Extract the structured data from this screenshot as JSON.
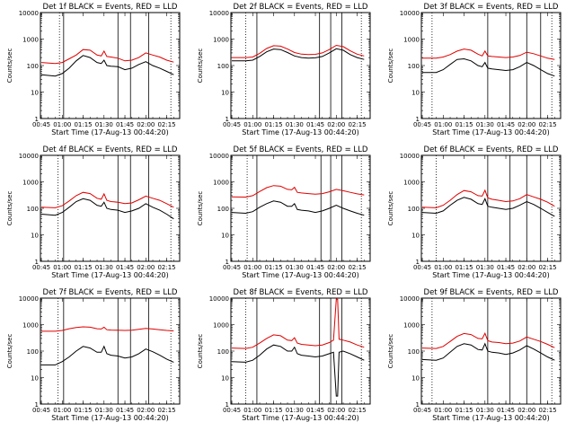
{
  "figure": {
    "xlabel": "Start Time (17-Aug-13 00:44:20)",
    "ylabel": "Counts/sec",
    "xticks": [
      "00:45",
      "01:00",
      "01:15",
      "01:30",
      "01:45",
      "02:00",
      "02:15"
    ],
    "yticks": [
      "1",
      "10",
      "100",
      "1000",
      "10000"
    ],
    "colors": {
      "events": "#000000",
      "lld": "#e00000",
      "markers": "#000000"
    }
  },
  "chart_data": [
    {
      "type": "line",
      "title": "Det 1f BLACK = Events, RED = LLD",
      "xlabel": "Start Time (17-Aug-13 00:44:20)",
      "ylabel": "Counts/sec",
      "y_scale": "log",
      "ylim": [
        1,
        10000
      ],
      "xlim": [
        "00:44:20",
        "02:24:20"
      ],
      "x_time_points": [
        "00:45",
        "00:55",
        "01:00",
        "01:05",
        "01:10",
        "01:15",
        "01:20",
        "01:25",
        "01:28",
        "01:30",
        "01:32",
        "01:35",
        "01:40",
        "01:45",
        "01:50",
        "01:55",
        "02:00",
        "02:05",
        "02:10",
        "02:15",
        "02:20"
      ],
      "series": [
        {
          "name": "Events",
          "color": "#000000",
          "values": [
            45,
            40,
            50,
            80,
            150,
            240,
            200,
            130,
            120,
            160,
            100,
            95,
            90,
            70,
            80,
            110,
            140,
            100,
            80,
            60,
            45
          ]
        },
        {
          "name": "LLD",
          "color": "#e00000",
          "values": [
            130,
            120,
            130,
            180,
            250,
            400,
            380,
            250,
            230,
            350,
            220,
            210,
            190,
            150,
            160,
            200,
            300,
            250,
            210,
            160,
            135
          ]
        }
      ],
      "vlines": {
        "dotted": [
          "00:58",
          "02:18"
        ],
        "solid": [
          "01:01",
          "01:40",
          "01:49",
          "02:02"
        ]
      }
    },
    {
      "type": "line",
      "title": "Det 2f BLACK = Events, RED = LLD",
      "xlabel": "Start Time (17-Aug-13 00:44:20)",
      "ylabel": "Counts/sec",
      "y_scale": "log",
      "ylim": [
        1,
        10000
      ],
      "xlim": [
        "00:44:20",
        "02:24:20"
      ],
      "x_time_points": [
        "00:45",
        "00:55",
        "01:00",
        "01:05",
        "01:10",
        "01:15",
        "01:20",
        "01:25",
        "01:30",
        "01:35",
        "01:40",
        "01:45",
        "01:50",
        "01:55",
        "02:00",
        "02:05",
        "02:10",
        "02:15",
        "02:20"
      ],
      "series": [
        {
          "name": "Events",
          "color": "#000000",
          "values": [
            150,
            150,
            160,
            220,
            330,
            420,
            400,
            310,
            230,
            200,
            190,
            195,
            220,
            300,
            430,
            380,
            260,
            200,
            170
          ]
        },
        {
          "name": "LLD",
          "color": "#e00000",
          "values": [
            200,
            200,
            210,
            290,
            440,
            560,
            540,
            420,
            310,
            270,
            260,
            265,
            300,
            400,
            580,
            520,
            360,
            270,
            230
          ]
        }
      ],
      "vlines": {
        "dotted": [
          "00:55",
          "02:18"
        ],
        "solid": [
          "01:03",
          "01:48",
          "01:56",
          "02:04"
        ]
      }
    },
    {
      "type": "line",
      "title": "Det 3f BLACK = Events, RED = LLD",
      "xlabel": "Start Time (17-Aug-13 00:44:20)",
      "ylabel": "Counts/sec",
      "y_scale": "log",
      "ylim": [
        1,
        10000
      ],
      "xlim": [
        "00:44:20",
        "02:24:20"
      ],
      "x_time_points": [
        "00:45",
        "00:55",
        "01:00",
        "01:05",
        "01:10",
        "01:15",
        "01:20",
        "01:25",
        "01:28",
        "01:30",
        "01:32",
        "01:35",
        "01:40",
        "01:45",
        "01:50",
        "01:55",
        "02:00",
        "02:05",
        "02:10",
        "02:15",
        "02:20"
      ],
      "series": [
        {
          "name": "Events",
          "color": "#000000",
          "values": [
            55,
            55,
            70,
            110,
            170,
            180,
            150,
            100,
            90,
            130,
            80,
            75,
            70,
            65,
            70,
            90,
            130,
            100,
            70,
            50,
            40
          ]
        },
        {
          "name": "LLD",
          "color": "#e00000",
          "values": [
            190,
            190,
            210,
            260,
            350,
            420,
            380,
            270,
            230,
            350,
            230,
            220,
            210,
            200,
            210,
            240,
            320,
            280,
            230,
            190,
            170
          ]
        }
      ],
      "vlines": {
        "dotted": [
          "00:52",
          "02:18"
        ],
        "solid": [
          "01:32",
          "01:48",
          "02:00",
          "02:10"
        ]
      }
    },
    {
      "type": "line",
      "title": "Det 4f BLACK = Events, RED = LLD",
      "xlabel": "Start Time (17-Aug-13 00:44:20)",
      "ylabel": "Counts/sec",
      "y_scale": "log",
      "ylim": [
        1,
        10000
      ],
      "xlim": [
        "00:44:20",
        "02:24:20"
      ],
      "x_time_points": [
        "00:45",
        "00:55",
        "01:00",
        "01:05",
        "01:10",
        "01:15",
        "01:20",
        "01:25",
        "01:28",
        "01:30",
        "01:32",
        "01:35",
        "01:40",
        "01:45",
        "01:50",
        "01:55",
        "02:00",
        "02:05",
        "02:10",
        "02:15",
        "02:20"
      ],
      "series": [
        {
          "name": "Events",
          "color": "#000000",
          "values": [
            60,
            55,
            70,
            110,
            180,
            230,
            200,
            130,
            120,
            170,
            100,
            90,
            85,
            70,
            80,
            100,
            150,
            110,
            85,
            60,
            40
          ]
        },
        {
          "name": "LLD",
          "color": "#e00000",
          "values": [
            110,
            105,
            125,
            190,
            300,
            400,
            360,
            240,
            220,
            350,
            200,
            180,
            170,
            150,
            160,
            210,
            290,
            240,
            200,
            150,
            110
          ]
        }
      ],
      "vlines": {
        "dotted": [
          "00:57",
          "02:18"
        ],
        "solid": [
          "01:01",
          "01:40",
          "01:49",
          "02:02"
        ]
      }
    },
    {
      "type": "line",
      "title": "Det 5f BLACK = Events, RED = LLD",
      "xlabel": "Start Time (17-Aug-13 00:44:20)",
      "ylabel": "Counts/sec",
      "y_scale": "log",
      "ylim": [
        1,
        10000
      ],
      "xlim": [
        "00:44:20",
        "02:24:20"
      ],
      "x_time_points": [
        "00:45",
        "00:55",
        "01:00",
        "01:05",
        "01:10",
        "01:15",
        "01:20",
        "01:25",
        "01:28",
        "01:30",
        "01:32",
        "01:35",
        "01:40",
        "01:45",
        "01:50",
        "01:55",
        "02:00",
        "02:05",
        "02:10",
        "02:15",
        "02:20"
      ],
      "series": [
        {
          "name": "Events",
          "color": "#000000",
          "values": [
            70,
            65,
            75,
            110,
            150,
            190,
            170,
            120,
            120,
            150,
            90,
            85,
            80,
            70,
            80,
            100,
            130,
            100,
            80,
            65,
            55
          ]
        },
        {
          "name": "LLD",
          "color": "#e00000",
          "values": [
            270,
            265,
            300,
            430,
            600,
            720,
            680,
            520,
            500,
            620,
            400,
            380,
            360,
            340,
            360,
            420,
            520,
            460,
            400,
            350,
            320
          ]
        }
      ],
      "vlines": {
        "dotted": [
          "00:56",
          "02:18"
        ],
        "solid": [
          "01:03",
          "01:49",
          "01:56",
          "02:04"
        ]
      }
    },
    {
      "type": "line",
      "title": "Det 6f BLACK = Events, RED = LLD",
      "xlabel": "Start Time (17-Aug-13 00:44:20)",
      "ylabel": "Counts/sec",
      "y_scale": "log",
      "ylim": [
        1,
        10000
      ],
      "xlim": [
        "00:44:20",
        "02:24:20"
      ],
      "x_time_points": [
        "00:45",
        "00:55",
        "01:00",
        "01:05",
        "01:10",
        "01:15",
        "01:20",
        "01:25",
        "01:28",
        "01:30",
        "01:32",
        "01:35",
        "01:40",
        "01:45",
        "01:50",
        "01:55",
        "02:00",
        "02:05",
        "02:10",
        "02:15",
        "02:20"
      ],
      "series": [
        {
          "name": "Events",
          "color": "#000000",
          "values": [
            70,
            65,
            80,
            130,
            200,
            260,
            220,
            150,
            140,
            230,
            120,
            110,
            100,
            90,
            100,
            130,
            180,
            140,
            100,
            70,
            50
          ]
        },
        {
          "name": "LLD",
          "color": "#e00000",
          "values": [
            110,
            105,
            130,
            200,
            330,
            470,
            420,
            300,
            290,
            480,
            250,
            220,
            200,
            180,
            190,
            230,
            330,
            270,
            220,
            170,
            120
          ]
        }
      ],
      "vlines": {
        "dotted": [
          "00:55",
          "02:18"
        ],
        "solid": [
          "01:32",
          "01:48",
          "02:00",
          "02:10"
        ]
      }
    },
    {
      "type": "line",
      "title": "Det 7f BLACK = Events, RED = LLD",
      "xlabel": "Start Time (17-Aug-13 00:44:20)",
      "ylabel": "Counts/sec",
      "y_scale": "log",
      "ylim": [
        1,
        10000
      ],
      "xlim": [
        "00:44:20",
        "02:24:20"
      ],
      "x_time_points": [
        "00:45",
        "00:55",
        "01:00",
        "01:05",
        "01:10",
        "01:15",
        "01:20",
        "01:25",
        "01:28",
        "01:30",
        "01:32",
        "01:35",
        "01:40",
        "01:45",
        "01:50",
        "01:55",
        "02:00",
        "02:05",
        "02:10",
        "02:15",
        "02:20"
      ],
      "series": [
        {
          "name": "Events",
          "color": "#000000",
          "values": [
            30,
            30,
            40,
            60,
            100,
            150,
            130,
            90,
            90,
            150,
            80,
            70,
            65,
            55,
            60,
            80,
            120,
            95,
            70,
            50,
            38
          ]
        },
        {
          "name": "LLD",
          "color": "#e00000",
          "values": [
            560,
            560,
            600,
            700,
            780,
            820,
            800,
            700,
            680,
            800,
            640,
            620,
            610,
            600,
            610,
            660,
            720,
            680,
            640,
            600,
            580
          ]
        }
      ],
      "vlines": {
        "dotted": [
          "00:57",
          "02:18"
        ],
        "solid": [
          "01:01",
          "01:40",
          "01:49",
          "02:02"
        ]
      }
    },
    {
      "type": "line",
      "title": "Det 8f BLACK = Events, RED = LLD",
      "xlabel": "Start Time (17-Aug-13 00:44:20)",
      "ylabel": "Counts/sec",
      "y_scale": "log",
      "ylim": [
        1,
        10000
      ],
      "xlim": [
        "00:44:20",
        "02:24:20"
      ],
      "x_time_points": [
        "00:45",
        "00:55",
        "01:00",
        "01:05",
        "01:10",
        "01:15",
        "01:20",
        "01:25",
        "01:28",
        "01:30",
        "01:32",
        "01:35",
        "01:40",
        "01:45",
        "01:50",
        "01:55",
        "01:58",
        "02:00",
        "02:01",
        "02:02",
        "02:05",
        "02:10",
        "02:15",
        "02:20"
      ],
      "series": [
        {
          "name": "Events",
          "color": "#000000",
          "values": [
            40,
            38,
            45,
            70,
            120,
            170,
            150,
            100,
            100,
            140,
            80,
            70,
            65,
            60,
            65,
            80,
            90,
            2,
            2,
            90,
            100,
            80,
            60,
            45
          ]
        },
        {
          "name": "LLD",
          "color": "#e00000",
          "values": [
            130,
            125,
            140,
            200,
            300,
            410,
            380,
            260,
            250,
            320,
            200,
            180,
            170,
            160,
            170,
            210,
            260,
            9000,
            9000,
            280,
            260,
            220,
            170,
            140
          ]
        }
      ],
      "vlines": {
        "dotted": [
          "00:55",
          "02:18"
        ],
        "solid": [
          "01:03",
          "01:48",
          "01:56",
          "02:04"
        ]
      }
    },
    {
      "type": "line",
      "title": "Det 9f BLACK = Events, RED = LLD",
      "xlabel": "Start Time (17-Aug-13 00:44:20)",
      "ylabel": "Counts/sec",
      "y_scale": "log",
      "ylim": [
        1,
        10000
      ],
      "xlim": [
        "00:44:20",
        "02:24:20"
      ],
      "x_time_points": [
        "00:45",
        "00:55",
        "01:00",
        "01:05",
        "01:10",
        "01:15",
        "01:20",
        "01:25",
        "01:28",
        "01:30",
        "01:32",
        "01:35",
        "01:40",
        "01:45",
        "01:50",
        "01:55",
        "02:00",
        "02:05",
        "02:10",
        "02:15",
        "02:20"
      ],
      "series": [
        {
          "name": "Events",
          "color": "#000000",
          "values": [
            48,
            45,
            55,
            90,
            150,
            190,
            170,
            115,
            110,
            190,
            100,
            90,
            85,
            75,
            85,
            110,
            160,
            120,
            85,
            60,
            45
          ]
        },
        {
          "name": "LLD",
          "color": "#e00000",
          "values": [
            130,
            125,
            150,
            230,
            360,
            460,
            420,
            300,
            290,
            470,
            250,
            220,
            210,
            190,
            200,
            240,
            340,
            280,
            230,
            180,
            135
          ]
        }
      ],
      "vlines": {
        "dotted": [
          "00:52",
          "02:18"
        ],
        "solid": [
          "01:32",
          "01:48",
          "02:00",
          "02:10"
        ]
      }
    }
  ]
}
